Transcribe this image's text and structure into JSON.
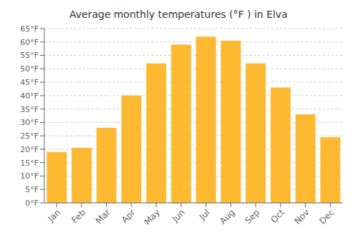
{
  "chart_data": {
    "type": "bar",
    "title": "Average monthly temperatures (°F ) in Elva",
    "categories": [
      "Jan",
      "Feb",
      "Mar",
      "Apr",
      "May",
      "Jun",
      "Jul",
      "Aug",
      "Sep",
      "Oct",
      "Nov",
      "Dec"
    ],
    "values": [
      19,
      20.5,
      28,
      40,
      52,
      59,
      62,
      60.5,
      52,
      43,
      33,
      24.5
    ],
    "color": "#FDB931",
    "ylim": [
      0,
      65
    ],
    "yticks": [
      {
        "value": 0,
        "label": "0°F"
      },
      {
        "value": 5,
        "label": "5°F"
      },
      {
        "value": 10,
        "label": "10°F"
      },
      {
        "value": 15,
        "label": "15°F"
      },
      {
        "value": 20,
        "label": "20°F"
      },
      {
        "value": 25,
        "label": "25°F"
      },
      {
        "value": 30,
        "label": "30°F"
      },
      {
        "value": 35,
        "label": "35°F"
      },
      {
        "value": 40,
        "label": "40°F"
      },
      {
        "value": 45,
        "label": "45°F"
      },
      {
        "value": 50,
        "label": "50°F"
      },
      {
        "value": 55,
        "label": "55°F"
      },
      {
        "value": 60,
        "label": "60°F"
      },
      {
        "value": 65,
        "label": "65°F"
      }
    ],
    "grid": true
  }
}
